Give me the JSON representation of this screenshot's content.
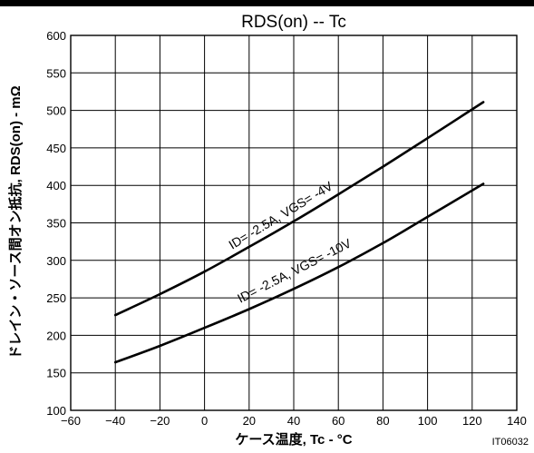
{
  "chart_data": {
    "type": "line",
    "title": "RDS(on) -- Tc",
    "xlabel": "ケース温度, Tc - °C",
    "ylabel": "ドレイン・ソース間オン抵抗, RDS(on) - mΩ",
    "xlim": [
      -60,
      140
    ],
    "ylim": [
      100,
      600
    ],
    "x_ticks": [
      "−60",
      "−40",
      "−20",
      "0",
      "20",
      "40",
      "60",
      "80",
      "100",
      "120",
      "140"
    ],
    "y_ticks": [
      "100",
      "150",
      "200",
      "250",
      "300",
      "350",
      "400",
      "450",
      "500",
      "550",
      "600"
    ],
    "grid": true,
    "series": [
      {
        "name": "ID= -2.5A, VGS= -4V",
        "x": [
          -40,
          -20,
          0,
          20,
          40,
          60,
          80,
          100,
          125
        ],
        "y": [
          227,
          255,
          285,
          318,
          352,
          388,
          425,
          463,
          511
        ]
      },
      {
        "name": "ID= -2.5A, VGS= -10V",
        "x": [
          -40,
          -20,
          0,
          20,
          40,
          60,
          80,
          100,
          125
        ],
        "y": [
          164,
          186,
          210,
          235,
          262,
          291,
          323,
          358,
          402
        ]
      }
    ],
    "figure_id": "IT06032",
    "colors": {
      "line": "#000000",
      "grid": "#000000",
      "background": "#ffffff"
    }
  }
}
